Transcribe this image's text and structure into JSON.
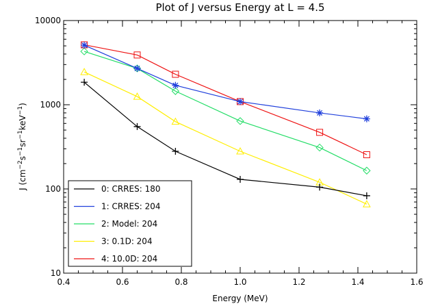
{
  "chart_data": {
    "type": "line",
    "title": "Plot of J versus Energy at L = 4.5",
    "xlabel": "Energy (MeV)",
    "ylabel": "J (cm⁻²s⁻¹sr⁻¹keV⁻¹)",
    "ylabel_parts": {
      "base": "J (cm",
      "e1": "−2",
      "s": "s",
      "e2": "−1",
      "sr": "sr",
      "e3": "−1",
      "kev": "keV",
      "e4": "−1",
      "close": ")"
    },
    "xlim": [
      0.4,
      1.6
    ],
    "ylim": [
      10,
      10000
    ],
    "yscale": "log",
    "xticks": [
      "0.4",
      "0.6",
      "0.8",
      "1.0",
      "1.2",
      "1.4",
      "1.6"
    ],
    "yticks": [
      "10",
      "100",
      "1000",
      "10000"
    ],
    "x": [
      0.47,
      0.65,
      0.78,
      1.0,
      1.27,
      1.43
    ],
    "legend_position": "bottom-left",
    "series": [
      {
        "name": "0: CRRES: 180",
        "color": "#000000",
        "marker": "plus",
        "values": [
          1850,
          550,
          280,
          130,
          105,
          83
        ]
      },
      {
        "name": "1: CRRES: 204",
        "color": "#1f3fdc",
        "marker": "asterisk",
        "values": [
          5100,
          2700,
          1700,
          1090,
          800,
          680
        ]
      },
      {
        "name": "2: Model: 204",
        "color": "#22dd66",
        "marker": "diamond",
        "values": [
          4300,
          2700,
          1450,
          640,
          310,
          165
        ]
      },
      {
        "name": "3: 0.1D: 204",
        "color": "#ffee00",
        "marker": "triangle",
        "values": [
          2450,
          1250,
          630,
          280,
          120,
          66
        ]
      },
      {
        "name": "4: 10.0D: 204",
        "color": "#ee1111",
        "marker": "square",
        "values": [
          5150,
          3900,
          2300,
          1090,
          470,
          255
        ]
      }
    ]
  }
}
